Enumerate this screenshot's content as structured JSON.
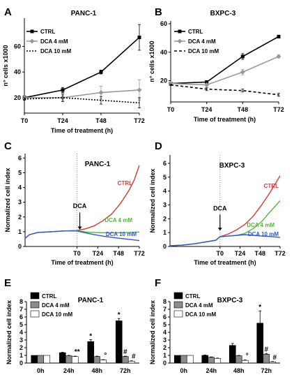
{
  "chart_data": [
    {
      "panel": "A",
      "type": "line",
      "title": "PANC-1",
      "xlabel": "Time of treatment (h)",
      "ylabel": "n° cells x1000",
      "categories": [
        "T0",
        "T24",
        "T48",
        "T72"
      ],
      "yticks": [
        20,
        40,
        60
      ],
      "ylim": [
        8,
        82
      ],
      "series": [
        {
          "name": "CTRL",
          "values": [
            20,
            26,
            40,
            67
          ],
          "errors": [
            1.5,
            2,
            1.5,
            10
          ],
          "color": "#000000",
          "style": "solid",
          "marker": "square"
        },
        {
          "name": "DCA 4 mM",
          "values": [
            20,
            20,
            24,
            26
          ],
          "errors": [
            1,
            2,
            5,
            8
          ],
          "color": "#999999",
          "style": "solid",
          "marker": "diamond"
        },
        {
          "name": "DCA 10 mM",
          "values": [
            19,
            20,
            18,
            16
          ],
          "errors": [
            1,
            3,
            3,
            4
          ],
          "color": "#000000",
          "style": "dotted",
          "marker": "none"
        }
      ]
    },
    {
      "panel": "B",
      "type": "line",
      "title": "BXPC-3",
      "xlabel": "Time of treatment (h)",
      "ylabel": "n° cells x1000",
      "categories": [
        "T0",
        "T24",
        "T48",
        "T72"
      ],
      "yticks": [
        20,
        40,
        60
      ],
      "ylim": [
        5,
        62
      ],
      "series": [
        {
          "name": "CTRL",
          "values": [
            18,
            19,
            37,
            51
          ],
          "errors": [
            1,
            1,
            2,
            1
          ],
          "color": "#000000",
          "style": "solid",
          "marker": "square"
        },
        {
          "name": "DCA 4 mM",
          "values": [
            18,
            17,
            26,
            37
          ],
          "errors": [
            1,
            1,
            2,
            1
          ],
          "color": "#999999",
          "style": "solid",
          "marker": "diamond"
        },
        {
          "name": "DCA 10 mM",
          "values": [
            17,
            14,
            13,
            10
          ],
          "errors": [
            0.5,
            1,
            1,
            1
          ],
          "color": "#000000",
          "style": "dashed",
          "marker": "none"
        }
      ]
    },
    {
      "panel": "C",
      "type": "line",
      "title": "PANC-1",
      "xlabel": "Time of treatment (h)",
      "ylabel": "Normalized cell index",
      "x_tick_labels": [
        "T0",
        "T24",
        "T48",
        "T72"
      ],
      "yticks": [
        0,
        1,
        2,
        3,
        4,
        5,
        6
      ],
      "ylim": [
        0,
        6.3
      ],
      "annotation": "DCA",
      "series_labels": [
        "CTRL",
        "DCA 4 mM",
        "DCA 10 mM"
      ],
      "series": [
        {
          "name": "CTRL",
          "color": "#d9382f",
          "points": [
            [
              -60,
              0.55
            ],
            [
              -55,
              0.8
            ],
            [
              -45,
              0.95
            ],
            [
              -30,
              1.0
            ],
            [
              -15,
              1.05
            ],
            [
              0,
              1.08
            ],
            [
              10,
              1.2
            ],
            [
              20,
              1.4
            ],
            [
              30,
              1.75
            ],
            [
              40,
              2.2
            ],
            [
              50,
              2.9
            ],
            [
              60,
              3.8
            ],
            [
              66,
              4.5
            ],
            [
              72,
              5.5
            ]
          ]
        },
        {
          "name": "DCA 4 mM",
          "color": "#55b53a",
          "points": [
            [
              -60,
              0.55
            ],
            [
              -55,
              0.8
            ],
            [
              -45,
              0.95
            ],
            [
              -30,
              1.0
            ],
            [
              -15,
              1.05
            ],
            [
              0,
              1.08
            ],
            [
              10,
              0.98
            ],
            [
              20,
              0.95
            ],
            [
              30,
              0.93
            ],
            [
              40,
              0.92
            ],
            [
              50,
              0.93
            ],
            [
              60,
              0.95
            ],
            [
              72,
              0.98
            ]
          ]
        },
        {
          "name": "DCA 10 mM",
          "color": "#3556c4",
          "points": [
            [
              -60,
              0.55
            ],
            [
              -55,
              0.8
            ],
            [
              -45,
              0.95
            ],
            [
              -30,
              1.0
            ],
            [
              -15,
              1.05
            ],
            [
              0,
              1.05
            ],
            [
              10,
              0.92
            ],
            [
              20,
              0.8
            ],
            [
              30,
              0.7
            ],
            [
              40,
              0.62
            ],
            [
              50,
              0.55
            ],
            [
              60,
              0.48
            ],
            [
              72,
              0.4
            ]
          ]
        }
      ]
    },
    {
      "panel": "D",
      "type": "line",
      "title": "BXPC-3",
      "xlabel": "Time of treatment (h)",
      "ylabel": "Normalized cell index",
      "x_tick_labels": [
        "T0",
        "T24",
        "T48",
        "T72"
      ],
      "yticks": [
        0,
        1,
        2,
        3,
        4,
        5,
        6
      ],
      "ylim": [
        0,
        6.6
      ],
      "annotation": "DCA",
      "series_labels": [
        "CTRL",
        "DCA 4 mM",
        "DCA 10 mM"
      ],
      "series": [
        {
          "name": "CTRL",
          "color": "#d9382f",
          "points": [
            [
              -60,
              0.05
            ],
            [
              -45,
              0.1
            ],
            [
              -30,
              0.2
            ],
            [
              -15,
              0.35
            ],
            [
              -5,
              0.45
            ],
            [
              0,
              0.7
            ],
            [
              10,
              0.9
            ],
            [
              20,
              1.2
            ],
            [
              30,
              1.6
            ],
            [
              40,
              2.2
            ],
            [
              50,
              3.0
            ],
            [
              60,
              3.9
            ],
            [
              72,
              5.1
            ]
          ]
        },
        {
          "name": "DCA 4 mM",
          "color": "#55b53a",
          "points": [
            [
              -60,
              0.05
            ],
            [
              -45,
              0.1
            ],
            [
              -30,
              0.2
            ],
            [
              -15,
              0.35
            ],
            [
              -5,
              0.45
            ],
            [
              0,
              0.7
            ],
            [
              10,
              0.75
            ],
            [
              20,
              0.8
            ],
            [
              30,
              0.95
            ],
            [
              40,
              1.3
            ],
            [
              50,
              1.8
            ],
            [
              60,
              2.5
            ],
            [
              72,
              3.3
            ]
          ]
        },
        {
          "name": "DCA 10 mM",
          "color": "#3556c4",
          "points": [
            [
              -60,
              0.05
            ],
            [
              -45,
              0.1
            ],
            [
              -30,
              0.2
            ],
            [
              -15,
              0.35
            ],
            [
              -5,
              0.45
            ],
            [
              0,
              0.7
            ],
            [
              10,
              0.75
            ],
            [
              20,
              0.8
            ],
            [
              30,
              0.85
            ],
            [
              40,
              0.8
            ],
            [
              50,
              0.75
            ],
            [
              60,
              0.72
            ],
            [
              72,
              0.65
            ]
          ]
        }
      ]
    },
    {
      "panel": "E",
      "type": "bar",
      "title": "PANC-1",
      "ylabel": "Normalized cell index",
      "categories": [
        "0h",
        "24h",
        "48h",
        "72h"
      ],
      "yticks": [
        0,
        1,
        2,
        3,
        4,
        5,
        6,
        7,
        8
      ],
      "ylim": [
        0,
        8
      ],
      "series": [
        {
          "name": "CTRL",
          "values": [
            1.0,
            1.35,
            2.8,
            5.5
          ],
          "errors": [
            0,
            0.05,
            0.25,
            0.3
          ],
          "color": "#000000"
        },
        {
          "name": "DCA 4 mM",
          "values": [
            1.0,
            0.95,
            0.85,
            0.85
          ],
          "errors": [
            0,
            0.05,
            0.05,
            0.05
          ],
          "color": "#8c8c8c"
        },
        {
          "name": "DCA 10 mM",
          "values": [
            1.0,
            0.85,
            0.4,
            0.25
          ],
          "errors": [
            0,
            0.05,
            0.05,
            0.05
          ],
          "color": "#ffffff"
        }
      ],
      "significance": [
        {
          "category": 1,
          "bar": 2,
          "mark": "**"
        },
        {
          "category": 2,
          "bar": 0,
          "mark": "*"
        },
        {
          "category": 2,
          "bar": 2,
          "mark": "°"
        },
        {
          "category": 3,
          "bar": 0,
          "mark": "*"
        },
        {
          "category": 3,
          "bar": 1,
          "mark": "#"
        },
        {
          "category": 3,
          "bar": 2,
          "mark": "#"
        }
      ]
    },
    {
      "panel": "F",
      "type": "bar",
      "title": "BXPC-3",
      "ylabel": "Normalized cell index",
      "categories": [
        "0h",
        "24h",
        "48h",
        "72h"
      ],
      "yticks": [
        0,
        1,
        2,
        3,
        4,
        5,
        6,
        7,
        8
      ],
      "ylim": [
        0,
        8
      ],
      "series": [
        {
          "name": "CTRL",
          "values": [
            1.0,
            1.0,
            2.3,
            5.2
          ],
          "errors": [
            0,
            0.05,
            0.25,
            1.6
          ],
          "color": "#000000"
        },
        {
          "name": "DCA 4 mM",
          "values": [
            1.0,
            0.75,
            0.95,
            1.15
          ],
          "errors": [
            0,
            0.05,
            0.05,
            0.1
          ],
          "color": "#8c8c8c"
        },
        {
          "name": "DCA 10 mM",
          "values": [
            1.0,
            0.6,
            0.35,
            0.15
          ],
          "errors": [
            0,
            0.05,
            0.05,
            0.05
          ],
          "color": "#ffffff"
        }
      ],
      "significance": [
        {
          "category": 2,
          "bar": 2,
          "mark": "°"
        },
        {
          "category": 3,
          "bar": 0,
          "mark": "*"
        },
        {
          "category": 3,
          "bar": 1,
          "mark": "#"
        },
        {
          "category": 3,
          "bar": 2,
          "mark": "#"
        }
      ]
    }
  ]
}
